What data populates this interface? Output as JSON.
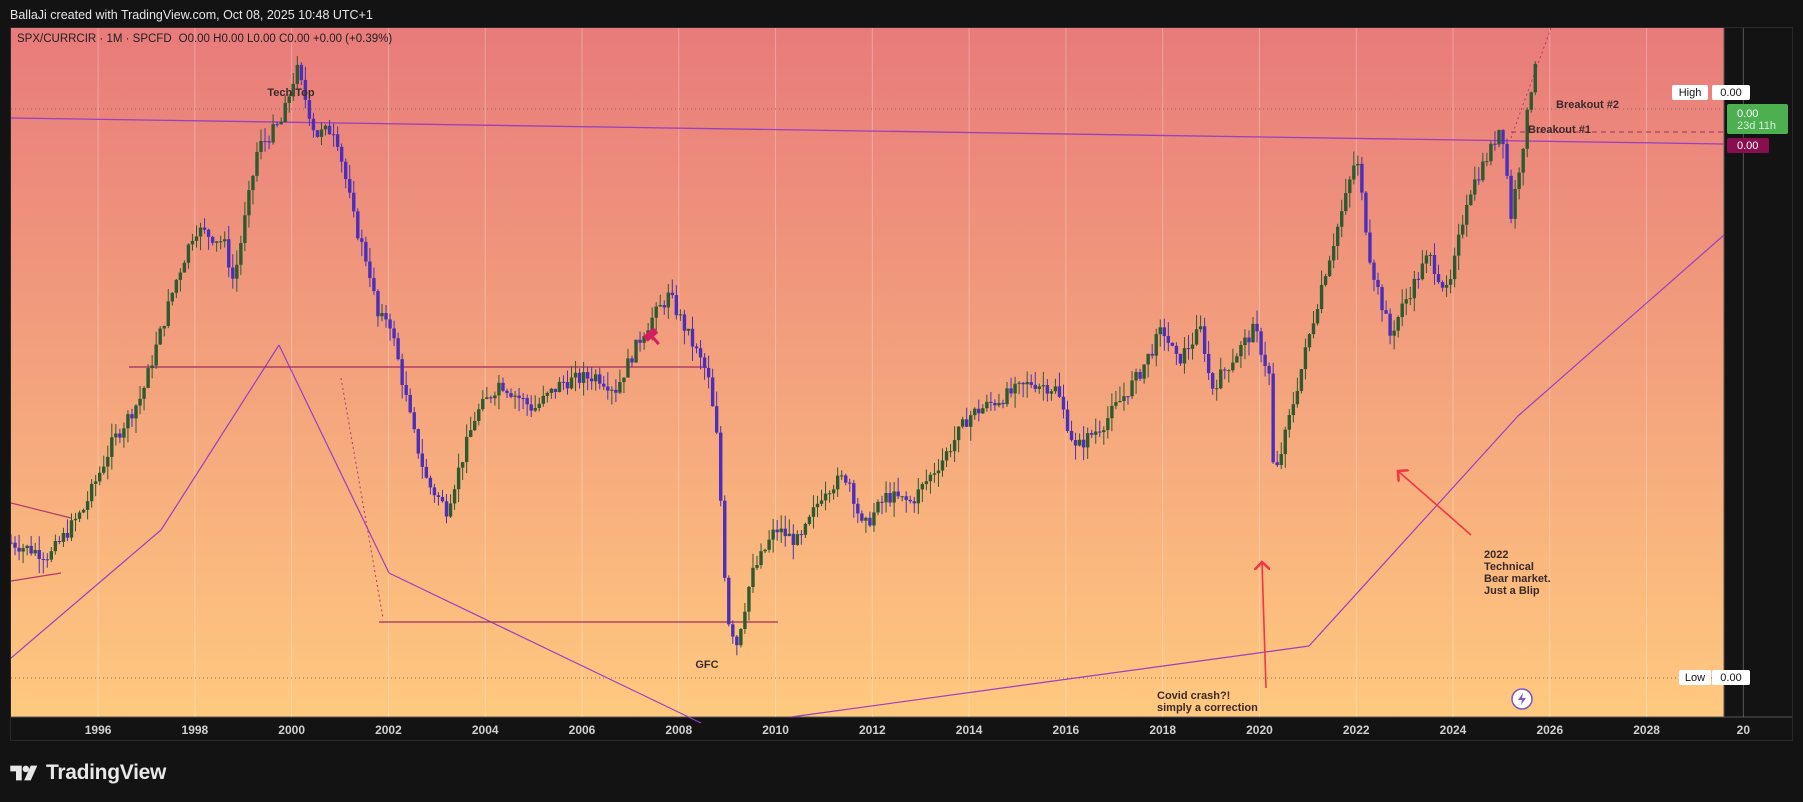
{
  "header": {
    "attribution": "BallaJi created with TradingView.com, Oct 08, 2025 10:48 UTC+1"
  },
  "legend": {
    "symbol": "SPX/CURRCIR · 1M · SPCFD",
    "ohlc": "O0.00  H0.00  L0.00  C0.00  +0.00 (+0.39%)"
  },
  "price_scale": {
    "high_label": "High",
    "high_value": "0.00",
    "low_label": "Low",
    "low_value": "0.00",
    "current_value": "0.00",
    "countdown": "23d 11h",
    "breakout1_value": "0.00"
  },
  "annotations": {
    "tech_top": "Tech Top",
    "gfc": "GFC",
    "breakout1": "Breakout #1",
    "breakout2": "Breakout #2",
    "covid_line1": "Covid crash?!",
    "covid_line2": "simply a correction",
    "bear_line1": "2022",
    "bear_line2": "Technical",
    "bear_line3": "Bear market.",
    "bear_line4": "Just a Blip"
  },
  "footer": {
    "brand": "TradingView"
  },
  "colors": {
    "bg_top": "#e87b7b",
    "bg_bottom": "#ffc97f",
    "bull": "#2e5a2e",
    "bear": "#4b2fb8",
    "trendline": "#9b3fbf",
    "arrow": "#f23645",
    "current_badge": "#4caf50",
    "breakout_badge": "#880e4f"
  },
  "chart_data": {
    "type": "candlestick",
    "title": "",
    "xlabel": "",
    "ylabel": "",
    "x_ticks": [
      "1996",
      "1998",
      "2000",
      "2002",
      "2004",
      "2006",
      "2008",
      "2010",
      "2012",
      "2014",
      "2016",
      "2018",
      "2020",
      "2022",
      "2024",
      "2026",
      "2028",
      "20"
    ],
    "xlim": [
      1994.2,
      2029.6
    ],
    "ylim": [
      -3.1,
      100
    ],
    "grid": true,
    "y_units": "relative (price labels hidden, all shown as 0.00)",
    "series": [
      {
        "name": "",
        "anchors": [
          [
            1994.2,
            23
          ],
          [
            1995.0,
            21
          ],
          [
            1995.7,
            28
          ],
          [
            1996.3,
            38
          ],
          [
            1996.9,
            45
          ],
          [
            1997.6,
            62
          ],
          [
            1998.0,
            70
          ],
          [
            1998.6,
            68
          ],
          [
            1998.8,
            62
          ],
          [
            1999.3,
            82
          ],
          [
            1999.8,
            86
          ],
          [
            2000.1,
            94
          ],
          [
            2000.5,
            84
          ],
          [
            2000.9,
            85
          ],
          [
            2001.3,
            71
          ],
          [
            2001.6,
            64
          ],
          [
            2001.8,
            56
          ],
          [
            2002.0,
            57
          ],
          [
            2002.5,
            40
          ],
          [
            2002.8,
            32
          ],
          [
            2003.2,
            28
          ],
          [
            2003.8,
            42
          ],
          [
            2004.3,
            47
          ],
          [
            2005.0,
            43
          ],
          [
            2005.6,
            47
          ],
          [
            2006.3,
            48
          ],
          [
            2006.7,
            46
          ],
          [
            2007.3,
            55
          ],
          [
            2007.8,
            60
          ],
          [
            2008.2,
            54
          ],
          [
            2008.6,
            48
          ],
          [
            2008.8,
            38
          ],
          [
            2009.0,
            12
          ],
          [
            2009.2,
            8
          ],
          [
            2009.5,
            18
          ],
          [
            2010.0,
            25
          ],
          [
            2010.5,
            23
          ],
          [
            2011.0,
            31
          ],
          [
            2011.5,
            33
          ],
          [
            2011.8,
            25
          ],
          [
            2012.3,
            30
          ],
          [
            2012.8,
            29
          ],
          [
            2013.5,
            36
          ],
          [
            2014.0,
            42
          ],
          [
            2014.5,
            44
          ],
          [
            2015.3,
            47
          ],
          [
            2015.8,
            46
          ],
          [
            2016.2,
            37
          ],
          [
            2016.8,
            41
          ],
          [
            2017.5,
            48
          ],
          [
            2018.0,
            55
          ],
          [
            2018.3,
            50
          ],
          [
            2018.8,
            55
          ],
          [
            2019.0,
            46
          ],
          [
            2019.5,
            51
          ],
          [
            2019.9,
            55
          ],
          [
            2020.2,
            48
          ],
          [
            2020.3,
            32
          ],
          [
            2020.8,
            47
          ],
          [
            2021.3,
            62
          ],
          [
            2021.8,
            75
          ],
          [
            2022.0,
            81
          ],
          [
            2022.3,
            65
          ],
          [
            2022.7,
            54
          ],
          [
            2023.0,
            59
          ],
          [
            2023.5,
            66
          ],
          [
            2023.9,
            60
          ],
          [
            2024.3,
            75
          ],
          [
            2024.8,
            82
          ],
          [
            2025.0,
            86
          ],
          [
            2025.2,
            72
          ],
          [
            2025.5,
            85
          ],
          [
            2025.75,
            98
          ]
        ]
      }
    ]
  }
}
